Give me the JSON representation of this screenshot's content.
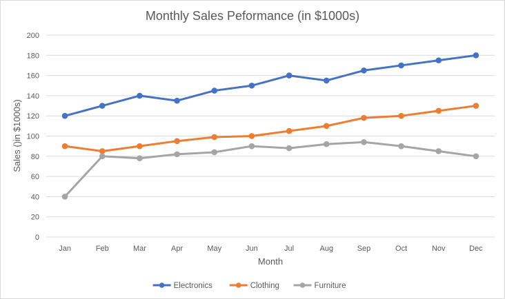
{
  "chart_data": {
    "type": "line",
    "title": "Monthly Sales Peformance (in $1000s)",
    "xlabel": "Month",
    "ylabel": "Sales ()in $1000s)",
    "ylim": [
      0,
      200
    ],
    "yticks": [
      0,
      20,
      40,
      60,
      80,
      100,
      120,
      140,
      160,
      180,
      200
    ],
    "grid": true,
    "legend_position": "bottom",
    "categories": [
      "Jan",
      "Feb",
      "Mar",
      "Apr",
      "May",
      "Jun",
      "Jul",
      "Aug",
      "Sep",
      "Oct",
      "Nov",
      "Dec"
    ],
    "series": [
      {
        "name": "Electronics",
        "color": "#4472c4",
        "values": [
          120,
          130,
          140,
          135,
          145,
          150,
          160,
          155,
          165,
          170,
          175,
          180
        ]
      },
      {
        "name": "Clothing",
        "color": "#ed7d31",
        "values": [
          90,
          85,
          90,
          95,
          99,
          100,
          105,
          110,
          118,
          120,
          125,
          130
        ]
      },
      {
        "name": "Furniture",
        "color": "#a5a5a5",
        "values": [
          40,
          80,
          78,
          82,
          84,
          90,
          88,
          92,
          94,
          90,
          85,
          80
        ]
      }
    ]
  }
}
